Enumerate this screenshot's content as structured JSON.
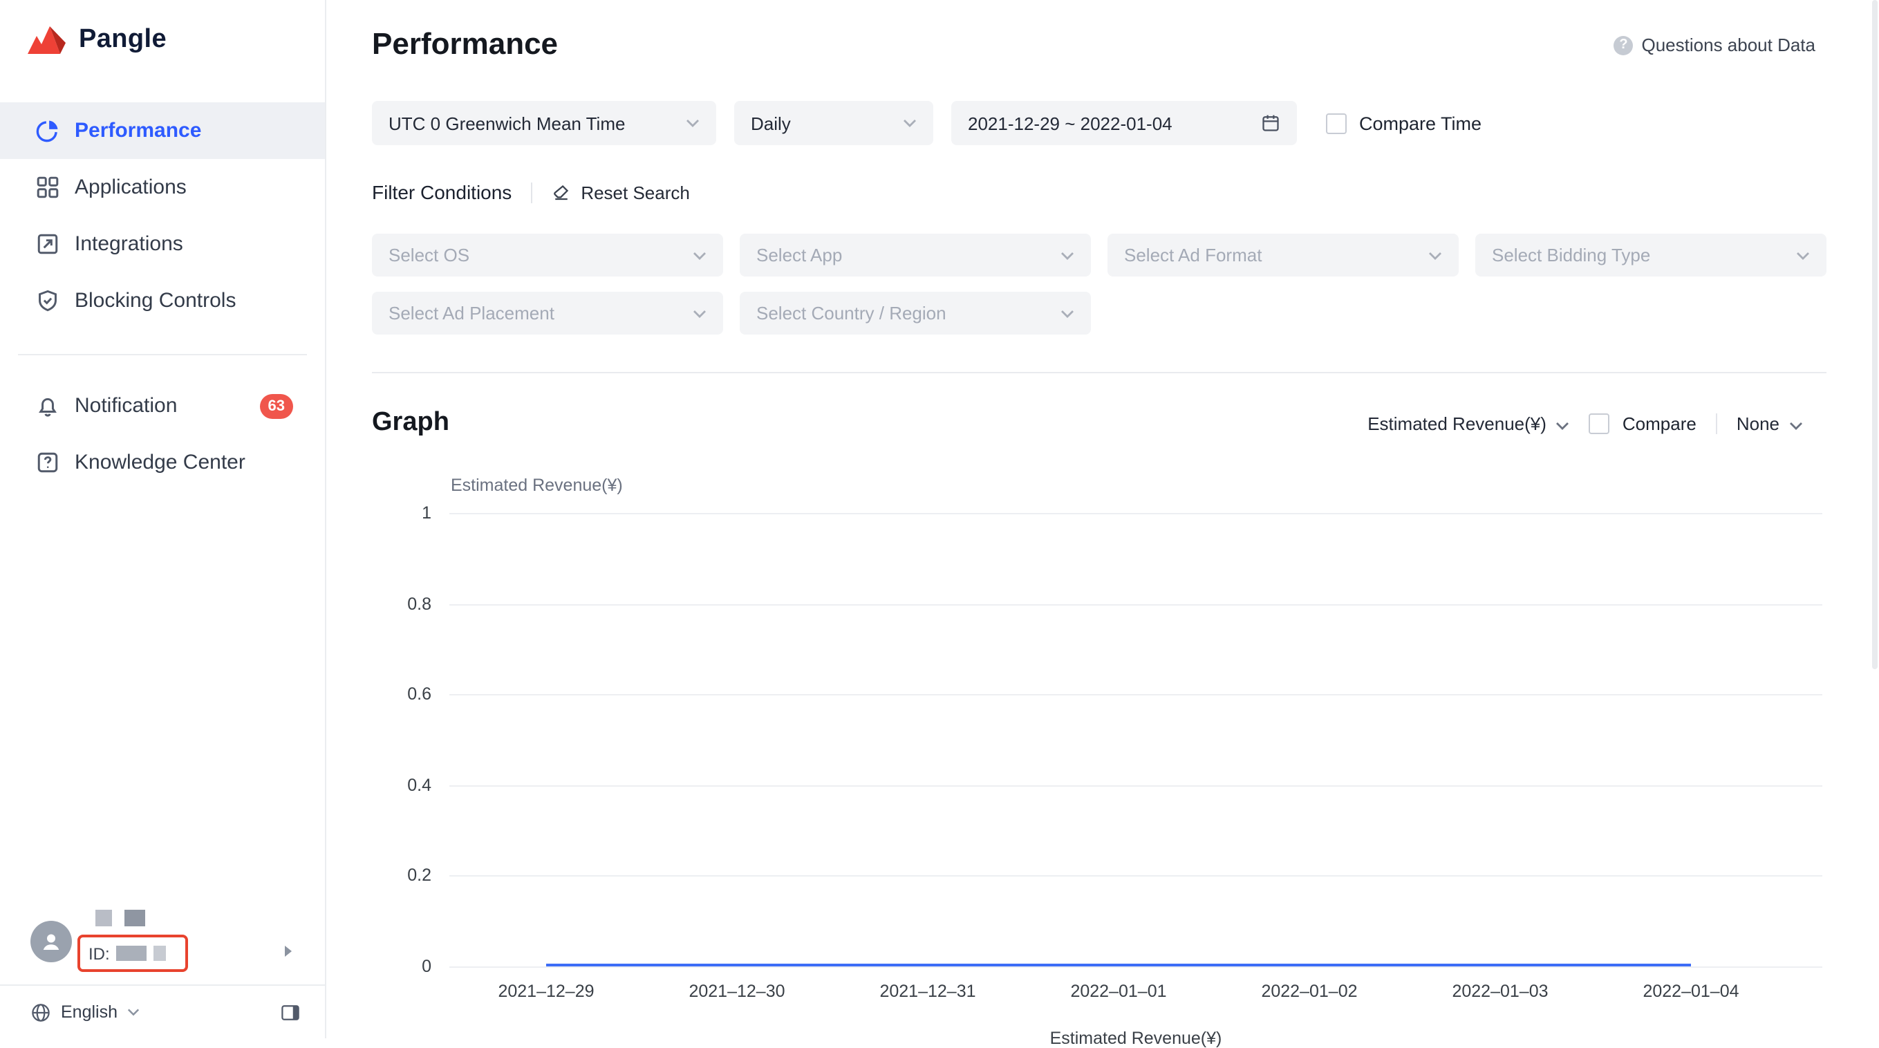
{
  "brand": {
    "name": "Pangle"
  },
  "sidebar": {
    "items": [
      {
        "label": "Performance"
      },
      {
        "label": "Applications"
      },
      {
        "label": "Integrations"
      },
      {
        "label": "Blocking Controls"
      },
      {
        "label": "Notification",
        "badge": "63"
      },
      {
        "label": "Knowledge Center"
      }
    ],
    "user": {
      "id_label": "ID:"
    },
    "language_label": "English"
  },
  "header": {
    "title": "Performance",
    "help_label": "Questions about Data"
  },
  "filters": {
    "timezone": "UTC 0 Greenwich Mean Time",
    "granularity": "Daily",
    "date_range": "2021-12-29 ~ 2022-01-04",
    "compare_time_label": "Compare Time",
    "conditions_label": "Filter Conditions",
    "reset_label": "Reset Search",
    "select_os": "Select OS",
    "select_app": "Select App",
    "select_ad_format": "Select Ad Format",
    "select_bidding_type": "Select Bidding Type",
    "select_ad_placement": "Select Ad Placement",
    "select_country": "Select Country / Region"
  },
  "graph": {
    "title": "Graph",
    "metric": "Estimated Revenue(¥)",
    "compare_label": "Compare",
    "group_by": "None"
  },
  "chart_data": {
    "type": "line",
    "title": "Estimated Revenue(¥)",
    "x": [
      "2021–12–29",
      "2021–12–30",
      "2021–12–31",
      "2022–01–01",
      "2022–01–02",
      "2022–01–03",
      "2022–01–04"
    ],
    "series": [
      {
        "name": "Estimated Revenue(¥)",
        "values": [
          0,
          0,
          0,
          0,
          0,
          0,
          0
        ]
      }
    ],
    "ylim": [
      0,
      1
    ],
    "yticks": [
      0,
      0.2,
      0.4,
      0.6,
      0.8,
      1
    ],
    "grid": true,
    "legend_position": "bottom",
    "line_color": "#3D6DF6"
  },
  "colors": {
    "accent_blue": "#2E5BFF",
    "badge_red": "#F0564C",
    "logo_red": "#EE4136",
    "annotation_red": "#E8432E",
    "chart_line": "#3D6DF6"
  }
}
